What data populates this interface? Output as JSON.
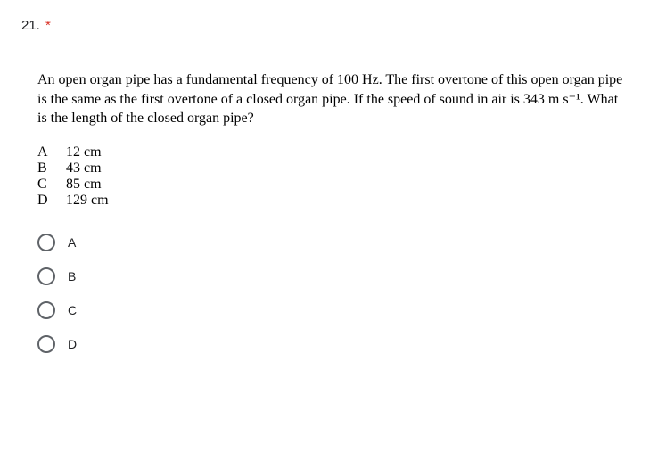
{
  "question": {
    "number": "21.",
    "required_marker": "*",
    "text": "An open organ pipe has a fundamental frequency of 100 Hz. The first overtone of this open organ pipe is the same as the first overtone of a closed organ pipe. If the speed of sound in air is 343 m s⁻¹. What is the length of the closed organ pipe?"
  },
  "answer_key": [
    {
      "letter": "A",
      "value": "12 cm"
    },
    {
      "letter": "B",
      "value": "43 cm"
    },
    {
      "letter": "C",
      "value": "85 cm"
    },
    {
      "letter": "D",
      "value": "129 cm"
    }
  ],
  "radio_options": [
    {
      "label": "A"
    },
    {
      "label": "B"
    },
    {
      "label": "C"
    },
    {
      "label": "D"
    }
  ],
  "colors": {
    "text": "#202124",
    "required": "#d93025",
    "radio_border": "#5f6368",
    "background": "#ffffff"
  }
}
